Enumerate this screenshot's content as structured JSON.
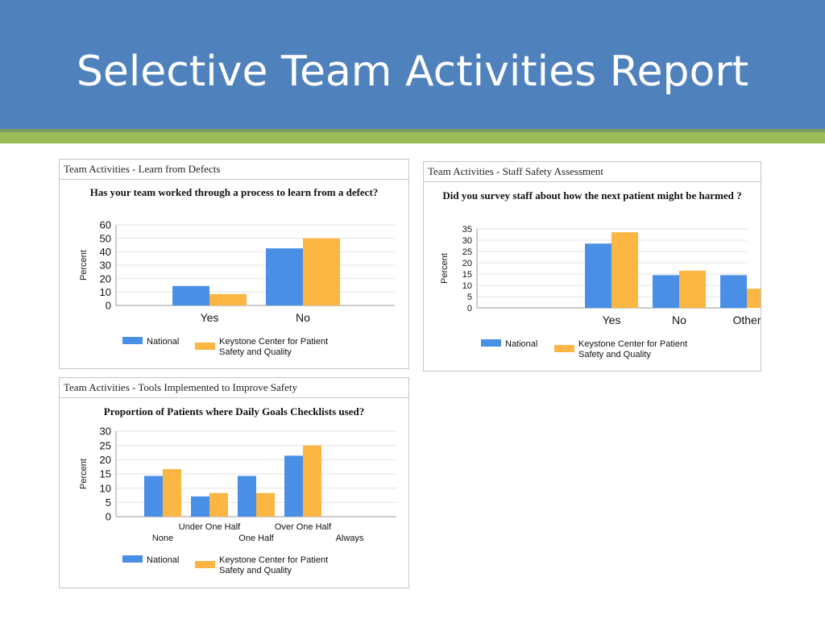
{
  "slide": {
    "title": "Selective Team Activities Report"
  },
  "legend": {
    "national": "National",
    "keystone_line1": "Keystone Center for Patient",
    "keystone_line2": "Safety and Quality"
  },
  "colors": {
    "national": "#4a8fe6",
    "keystone": "#fbb644",
    "header": "#4f81bd",
    "accent": "#9bbb59"
  },
  "chart_data": [
    {
      "type": "bar",
      "panel_title": "Team Activities - Learn from Defects",
      "title": "Has your team worked through a process to learn from a defect?",
      "ylabel": "Percent",
      "ylim": [
        0,
        60
      ],
      "yticks": [
        0,
        10,
        20,
        30,
        40,
        50,
        60
      ],
      "categories": [
        "Yes",
        "No"
      ],
      "series": [
        {
          "name": "National",
          "values": [
            14.5,
            42.5
          ]
        },
        {
          "name": "Keystone Center for Patient Safety and Quality",
          "values": [
            8.5,
            50
          ]
        }
      ]
    },
    {
      "type": "bar",
      "panel_title": "Team Activities - Staff Safety Assessment",
      "title": "Did you survey staff about how the next patient might be harmed ?",
      "ylabel": "Percent",
      "ylim": [
        0,
        35
      ],
      "yticks": [
        0,
        5,
        10,
        15,
        20,
        25,
        30,
        35
      ],
      "categories": [
        "Yes",
        "No",
        "Other"
      ],
      "series": [
        {
          "name": "National",
          "values": [
            28.5,
            14.5,
            14.5
          ]
        },
        {
          "name": "Keystone Center for Patient Safety and Quality",
          "values": [
            33.5,
            16.5,
            8.5
          ]
        }
      ]
    },
    {
      "type": "bar",
      "panel_title": "Team Activities - Tools Implemented to Improve Safety",
      "title": "Proportion of Patients where Daily Goals Checklists used?",
      "ylabel": "Percent",
      "ylim": [
        0,
        30
      ],
      "yticks": [
        0,
        5,
        10,
        15,
        20,
        25,
        30
      ],
      "categories": [
        "None",
        "Under One Half",
        "One Half",
        "Over One Half",
        "Always"
      ],
      "series": [
        {
          "name": "National",
          "values": [
            14.3,
            7.1,
            14.3,
            21.4,
            0
          ]
        },
        {
          "name": "Keystone Center for Patient Safety and Quality",
          "values": [
            16.7,
            8.3,
            8.3,
            25,
            0
          ]
        }
      ]
    }
  ]
}
